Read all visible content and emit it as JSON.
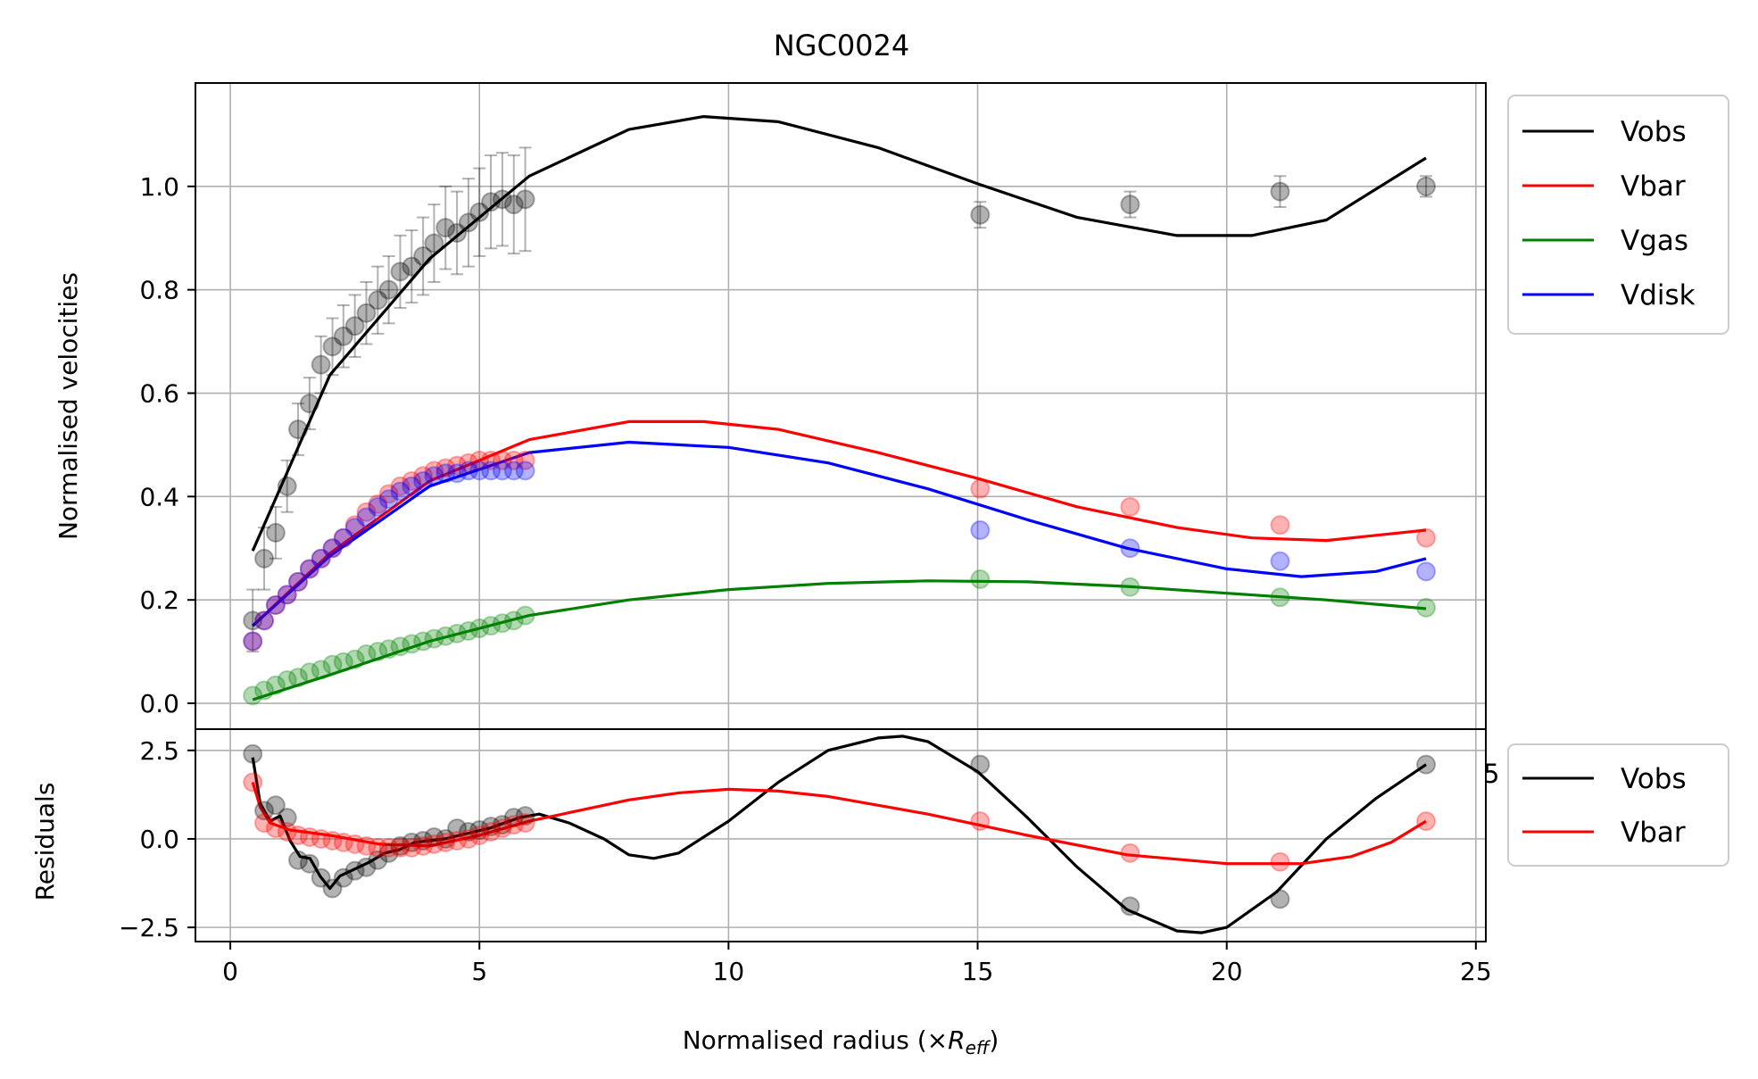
{
  "chart_data": [
    {
      "type": "scatter",
      "panel": "main",
      "title": "NGC0024",
      "xlabel": "Normalised radius (×R_eff)",
      "xlabel_prefix": "Normalised radius (×",
      "xlabel_symbol": "R",
      "xlabel_subscript": "eff",
      "xlabel_suffix": ")",
      "ylabel": "Normalised velocities",
      "xlim": [
        -0.7,
        25.2
      ],
      "ylim": [
        -0.05,
        1.2
      ],
      "xticks": [
        0,
        5,
        10,
        15,
        20,
        25
      ],
      "xtick_labels": [
        "0",
        "5",
        "10",
        "15",
        "20",
        "25"
      ],
      "yticks": [
        0.0,
        0.2,
        0.4,
        0.6,
        0.8,
        1.0
      ],
      "ytick_labels": [
        "0.0",
        "0.2",
        "0.4",
        "0.6",
        "0.8",
        "1.0"
      ],
      "grid": true,
      "legend_position": "outside-upper-right",
      "x": [
        0.45,
        0.68,
        0.91,
        1.14,
        1.36,
        1.59,
        1.82,
        2.05,
        2.27,
        2.5,
        2.73,
        2.96,
        3.18,
        3.41,
        3.64,
        3.87,
        4.09,
        4.32,
        4.55,
        4.78,
        5.0,
        5.23,
        5.46,
        5.69,
        5.92,
        15.05,
        18.06,
        21.07,
        24.0
      ],
      "series": [
        {
          "name": "Vobs",
          "color": "#000000",
          "points": [
            0.16,
            0.28,
            0.33,
            0.42,
            0.53,
            0.58,
            0.655,
            0.69,
            0.71,
            0.73,
            0.755,
            0.78,
            0.8,
            0.835,
            0.845,
            0.865,
            0.89,
            0.92,
            0.91,
            0.93,
            0.95,
            0.97,
            0.975,
            0.965,
            0.975,
            0.945,
            0.965,
            0.99,
            1.0
          ],
          "errors": [
            0.06,
            0.06,
            0.05,
            0.05,
            0.05,
            0.05,
            0.055,
            0.055,
            0.06,
            0.06,
            0.06,
            0.065,
            0.065,
            0.07,
            0.07,
            0.075,
            0.075,
            0.08,
            0.08,
            0.085,
            0.085,
            0.09,
            0.09,
            0.095,
            0.1,
            0.025,
            0.025,
            0.03,
            0.02
          ],
          "fit_x": [
            0.45,
            2.0,
            4.0,
            6.0,
            8.0,
            9.5,
            11.0,
            13.0,
            15.0,
            17.0,
            19.0,
            20.5,
            22.0,
            24.0
          ],
          "fit_y": [
            0.295,
            0.635,
            0.86,
            1.02,
            1.11,
            1.135,
            1.125,
            1.075,
            1.005,
            0.94,
            0.905,
            0.905,
            0.935,
            1.055
          ]
        },
        {
          "name": "Vbar",
          "color": "#ff0000",
          "points": [
            0.12,
            0.16,
            0.19,
            0.21,
            0.235,
            0.26,
            0.28,
            0.3,
            0.32,
            0.345,
            0.37,
            0.385,
            0.405,
            0.42,
            0.43,
            0.44,
            0.45,
            0.455,
            0.46,
            0.465,
            0.47,
            0.47,
            0.47,
            0.47,
            0.47,
            0.415,
            0.38,
            0.345,
            0.32
          ],
          "fit_x": [
            0.45,
            2.0,
            4.0,
            6.0,
            8.0,
            9.5,
            11.0,
            13.0,
            15.0,
            17.0,
            19.0,
            20.5,
            22.0,
            24.0
          ],
          "fit_y": [
            0.15,
            0.29,
            0.43,
            0.51,
            0.545,
            0.545,
            0.53,
            0.485,
            0.435,
            0.38,
            0.34,
            0.32,
            0.315,
            0.335
          ]
        },
        {
          "name": "Vgas",
          "color": "#008000",
          "points": [
            0.015,
            0.025,
            0.035,
            0.045,
            0.05,
            0.06,
            0.065,
            0.075,
            0.08,
            0.085,
            0.095,
            0.1,
            0.105,
            0.11,
            0.115,
            0.12,
            0.125,
            0.13,
            0.135,
            0.14,
            0.145,
            0.15,
            0.155,
            0.16,
            0.17,
            0.24,
            0.225,
            0.205,
            0.185
          ],
          "fit_x": [
            0.45,
            2.0,
            4.0,
            6.0,
            8.0,
            10.0,
            12.0,
            14.0,
            16.0,
            18.0,
            20.0,
            22.0,
            24.0
          ],
          "fit_y": [
            0.007,
            0.055,
            0.12,
            0.17,
            0.2,
            0.22,
            0.232,
            0.237,
            0.235,
            0.226,
            0.213,
            0.2,
            0.183
          ]
        },
        {
          "name": "Vdisk",
          "color": "#0000ff",
          "points": [
            0.12,
            0.16,
            0.19,
            0.21,
            0.235,
            0.26,
            0.28,
            0.3,
            0.32,
            0.34,
            0.36,
            0.38,
            0.395,
            0.41,
            0.42,
            0.43,
            0.44,
            0.445,
            0.445,
            0.45,
            0.45,
            0.45,
            0.45,
            0.45,
            0.45,
            0.335,
            0.3,
            0.275,
            0.255
          ],
          "fit_x": [
            0.45,
            2.0,
            4.0,
            6.0,
            8.0,
            10.0,
            12.0,
            14.0,
            16.0,
            18.0,
            20.0,
            21.5,
            23.0,
            24.0
          ],
          "fit_y": [
            0.15,
            0.285,
            0.42,
            0.485,
            0.505,
            0.495,
            0.465,
            0.415,
            0.355,
            0.3,
            0.26,
            0.245,
            0.255,
            0.28
          ]
        }
      ]
    },
    {
      "type": "scatter",
      "panel": "residuals",
      "ylabel": "Residuals",
      "xlim": [
        -0.7,
        25.2
      ],
      "ylim": [
        -2.9,
        3.1
      ],
      "yticks": [
        -2.5,
        0.0,
        2.5
      ],
      "ytick_labels": [
        "−2.5",
        "0.0",
        "2.5"
      ],
      "grid": true,
      "legend_position": "outside-right",
      "stray_label": "5",
      "x": [
        0.45,
        0.68,
        0.91,
        1.14,
        1.36,
        1.59,
        1.82,
        2.05,
        2.27,
        2.5,
        2.73,
        2.96,
        3.18,
        3.41,
        3.64,
        3.87,
        4.09,
        4.32,
        4.55,
        4.78,
        5.0,
        5.23,
        5.46,
        5.69,
        5.92,
        15.05,
        18.06,
        21.07,
        24.0
      ],
      "series": [
        {
          "name": "Vobs",
          "color": "#000000",
          "points": [
            2.4,
            0.8,
            0.95,
            0.6,
            -0.6,
            -0.7,
            -1.1,
            -1.4,
            -1.1,
            -0.9,
            -0.8,
            -0.6,
            -0.4,
            -0.2,
            -0.1,
            -0.05,
            0.05,
            0.0,
            0.3,
            0.2,
            0.25,
            0.35,
            0.4,
            0.6,
            0.65,
            2.1,
            -1.9,
            -1.7,
            2.1
          ],
          "fit_x": [
            0.45,
            0.6,
            0.8,
            1.0,
            1.2,
            1.4,
            1.6,
            1.8,
            2.0,
            2.2,
            2.5,
            2.8,
            3.1,
            3.4,
            3.7,
            4.0,
            4.3,
            4.6,
            4.9,
            5.2,
            5.5,
            5.8,
            6.2,
            6.8,
            7.5,
            8.0,
            8.5,
            9.0,
            10.0,
            11.0,
            12.0,
            13.0,
            13.5,
            14.0,
            15.0,
            16.0,
            17.0,
            18.0,
            19.0,
            19.5,
            20.0,
            21.0,
            22.0,
            23.0,
            24.0
          ],
          "fit_y": [
            2.3,
            1.0,
            0.5,
            0.65,
            -0.05,
            -0.5,
            -0.55,
            -1.05,
            -1.4,
            -1.05,
            -0.85,
            -0.65,
            -0.4,
            -0.3,
            -0.1,
            -0.05,
            0.0,
            0.1,
            0.2,
            0.3,
            0.45,
            0.6,
            0.7,
            0.45,
            0.0,
            -0.45,
            -0.55,
            -0.4,
            0.5,
            1.6,
            2.5,
            2.85,
            2.9,
            2.75,
            1.9,
            0.6,
            -0.8,
            -2.0,
            -2.6,
            -2.65,
            -2.5,
            -1.5,
            0.0,
            1.15,
            2.1
          ]
        },
        {
          "name": "Vbar",
          "color": "#ff0000",
          "points": [
            1.6,
            0.45,
            0.3,
            0.2,
            0.1,
            0.05,
            0.0,
            -0.05,
            -0.1,
            -0.15,
            -0.2,
            -0.25,
            -0.25,
            -0.25,
            -0.25,
            -0.2,
            -0.15,
            -0.1,
            -0.05,
            0.0,
            0.1,
            0.2,
            0.3,
            0.4,
            0.45,
            0.5,
            -0.4,
            -0.65,
            0.5
          ],
          "fit_x": [
            0.45,
            0.6,
            0.8,
            1.2,
            2.0,
            3.0,
            4.0,
            5.0,
            6.0,
            7.0,
            8.0,
            9.0,
            10.0,
            11.0,
            12.0,
            14.0,
            16.0,
            18.0,
            20.0,
            21.5,
            22.5,
            23.3,
            24.0
          ],
          "fit_y": [
            1.6,
            0.9,
            0.45,
            0.25,
            0.1,
            -0.15,
            -0.2,
            0.1,
            0.5,
            0.8,
            1.1,
            1.3,
            1.4,
            1.35,
            1.2,
            0.7,
            0.1,
            -0.45,
            -0.7,
            -0.7,
            -0.5,
            -0.1,
            0.5
          ]
        }
      ]
    }
  ]
}
